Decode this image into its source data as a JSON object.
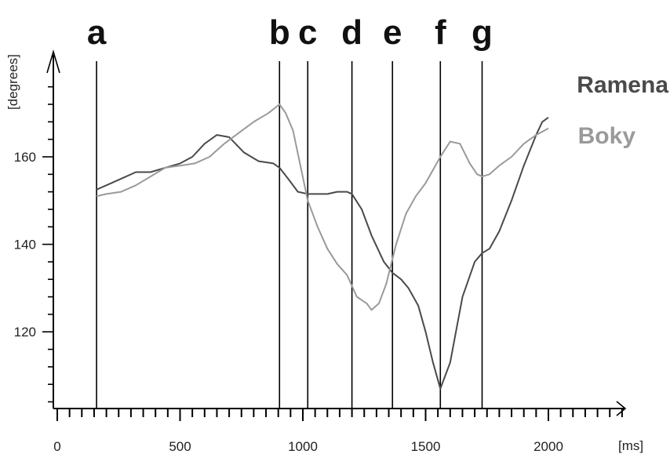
{
  "chart_data": {
    "type": "line",
    "xlabel": "[ms]",
    "ylabel": "[degrees]",
    "xlim": [
      0,
      2300
    ],
    "ylim": [
      102,
      181
    ],
    "x_ticks": [
      0,
      500,
      1000,
      1500,
      2000
    ],
    "y_ticks": [
      120,
      140,
      160
    ],
    "grid": false,
    "legend_position": "top-right",
    "markers": [
      {
        "label": "a",
        "x": 160
      },
      {
        "label": "b",
        "x": 905
      },
      {
        "label": "c",
        "x": 1020
      },
      {
        "label": "d",
        "x": 1200
      },
      {
        "label": "e",
        "x": 1365
      },
      {
        "label": "f",
        "x": 1560
      },
      {
        "label": "g",
        "x": 1730
      }
    ],
    "series": [
      {
        "name": "Ramena",
        "color": "#4a4a4a",
        "x": [
          160,
          200,
          260,
          320,
          380,
          440,
          500,
          550,
          600,
          650,
          700,
          760,
          820,
          880,
          905,
          940,
          980,
          1020,
          1060,
          1100,
          1140,
          1180,
          1200,
          1240,
          1280,
          1330,
          1365,
          1400,
          1430,
          1470,
          1500,
          1530,
          1560,
          1600,
          1650,
          1700,
          1730,
          1760,
          1800,
          1850,
          1900,
          1950,
          1975,
          2000
        ],
        "y": [
          152.5,
          153.5,
          155,
          156.5,
          156.5,
          157.5,
          158.5,
          160,
          163,
          165,
          164.5,
          161,
          159,
          158.5,
          157.5,
          155,
          152,
          151.5,
          151.5,
          151.5,
          152,
          152,
          151.5,
          148,
          142,
          136,
          133.5,
          132,
          130,
          126,
          120,
          113,
          107,
          113,
          128,
          136,
          138,
          139,
          143,
          150,
          158,
          165,
          168,
          169
        ]
      },
      {
        "name": "Boky",
        "color": "#9a9a9a",
        "x": [
          160,
          200,
          260,
          320,
          380,
          440,
          500,
          560,
          620,
          680,
          740,
          800,
          860,
          905,
          930,
          960,
          990,
          1020,
          1060,
          1100,
          1140,
          1180,
          1220,
          1260,
          1280,
          1310,
          1340,
          1380,
          1420,
          1460,
          1500,
          1530,
          1560,
          1600,
          1640,
          1680,
          1710,
          1730,
          1760,
          1800,
          1850,
          1900,
          1950,
          2000
        ],
        "y": [
          151,
          151.5,
          152,
          153.5,
          155.5,
          157.5,
          158,
          158.5,
          160,
          163,
          165.5,
          168,
          170,
          172,
          170,
          166,
          158,
          150,
          144,
          139,
          135.5,
          133,
          128,
          126.5,
          125,
          126.5,
          131,
          140,
          147,
          151,
          154,
          157,
          160,
          163.5,
          163,
          158.5,
          156,
          155.5,
          156,
          158,
          160,
          163,
          165,
          166.5
        ]
      }
    ]
  }
}
